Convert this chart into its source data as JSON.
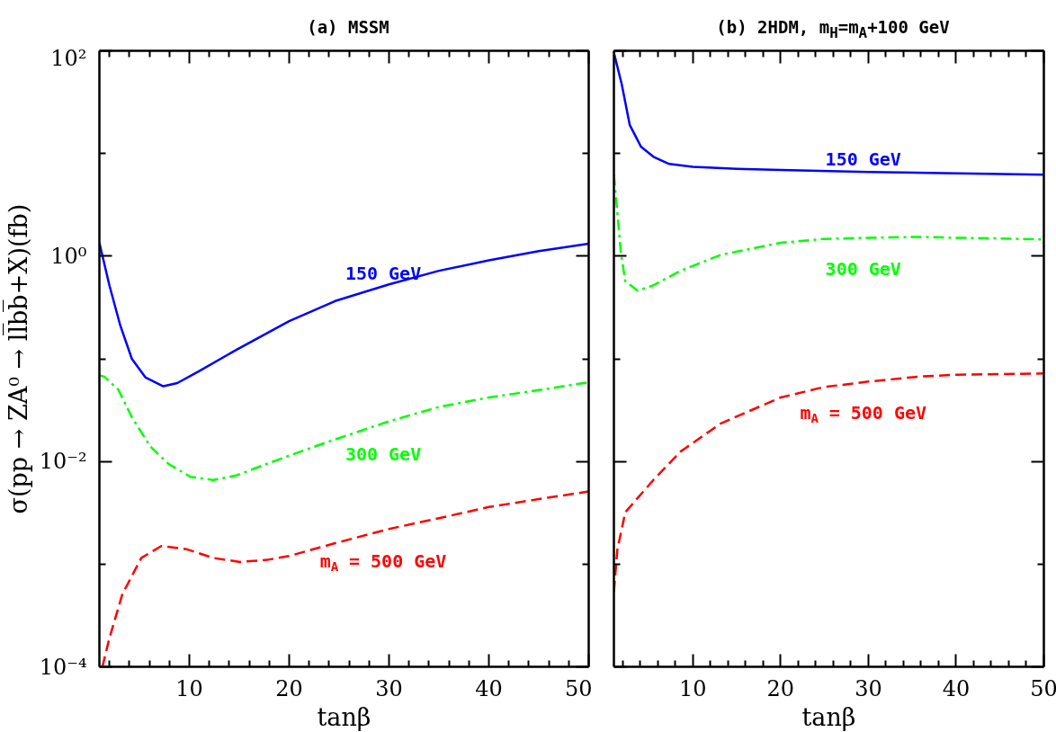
{
  "chart_data": [
    {
      "type": "line",
      "title": "(a) MSSM",
      "xlabel": "tanβ",
      "ylabel": "σ(pp → ZA⁰ → ll̅bb̅+X)(fb)",
      "log": "y",
      "grid": false,
      "xlim": [
        1,
        50
      ],
      "ylim": [
        0.0001,
        100
      ],
      "xticks": [
        {
          "value": 2,
          "label": null
        },
        {
          "value": 4,
          "label": null
        },
        {
          "value": 6,
          "label": null
        },
        {
          "value": 8,
          "label": null
        },
        10,
        {
          "value": 12,
          "label": null
        },
        {
          "value": 14,
          "label": null
        },
        {
          "value": 16,
          "label": null
        },
        {
          "value": 18,
          "label": null
        },
        20,
        {
          "value": 22,
          "label": null
        },
        {
          "value": 24,
          "label": null
        },
        {
          "value": 26,
          "label": null
        },
        {
          "value": 28,
          "label": null
        },
        30,
        {
          "value": 32,
          "label": null
        },
        {
          "value": 34,
          "label": null
        },
        {
          "value": 36,
          "label": null
        },
        {
          "value": 38,
          "label": null
        },
        40,
        {
          "value": 42,
          "label": null
        },
        {
          "value": 44,
          "label": null
        },
        {
          "value": 46,
          "label": null
        },
        {
          "value": 48,
          "label": null
        },
        50
      ],
      "yticks": [
        {
          "value": 0.0001,
          "label": "10⁻⁴"
        },
        {
          "value": 0.001,
          "label": null
        },
        {
          "value": 0.01,
          "label": "10⁻²"
        },
        {
          "value": 0.1,
          "label": null
        },
        {
          "value": 1,
          "label": "10⁰"
        },
        {
          "value": 10,
          "label": null
        },
        {
          "value": 100,
          "label": "10²"
        }
      ],
      "series": [
        {
          "name": "150 GeV",
          "color": "#0000ff",
          "line_style": "solid",
          "x": [
            1,
            2,
            3.1,
            4.25,
            5.6,
            7.4,
            8.8,
            11,
            14.7,
            20,
            24.6,
            30,
            35,
            40,
            45,
            50
          ],
          "values": [
            1.35,
            0.52,
            0.21,
            0.1,
            0.066,
            0.054,
            0.058,
            0.076,
            0.122,
            0.233,
            0.365,
            0.53,
            0.72,
            0.91,
            1.12,
            1.32
          ]
        },
        {
          "name": "300 GeV",
          "color": "#00ff00",
          "line_style": "dashdot",
          "x": [
            1,
            1.5,
            2.9,
            4.25,
            6.1,
            7.9,
            10.1,
            12.4,
            14.7,
            17.8,
            20,
            24.6,
            30,
            35,
            40,
            45,
            50
          ],
          "values": [
            0.069,
            0.067,
            0.05,
            0.027,
            0.014,
            0.0095,
            0.0071,
            0.0066,
            0.0073,
            0.0095,
            0.0114,
            0.0164,
            0.0246,
            0.034,
            0.042,
            0.0496,
            0.059
          ]
        },
        {
          "name": "m$_{A}$ = 500 GeV",
          "color": "#ff0000",
          "line_style": "dashed",
          "x": [
            1.3,
            2,
            3.3,
            5.2,
            7.2,
            9.7,
            12.4,
            15.1,
            17.8,
            20,
            24.6,
            30,
            35,
            40,
            45,
            50
          ],
          "values": [
            0.0001,
            0.00019,
            0.00051,
            0.00115,
            0.0015,
            0.0014,
            0.00115,
            0.00105,
            0.0011,
            0.0012,
            0.0016,
            0.0022,
            0.0028,
            0.0036,
            0.0043,
            0.0051
          ]
        }
      ]
    },
    {
      "type": "line",
      "title": "(b) 2HDM, m$_{H}$=m$_{A}$+100 GeV",
      "xlabel": "tanβ",
      "log": "y",
      "grid": false,
      "tick_labels": "x",
      "xlim": [
        1,
        50
      ],
      "ylim": [
        0.0001,
        100
      ],
      "xticks": [
        {
          "value": 2,
          "label": null
        },
        {
          "value": 4,
          "label": null
        },
        {
          "value": 6,
          "label": null
        },
        {
          "value": 8,
          "label": null
        },
        10,
        {
          "value": 12,
          "label": null
        },
        {
          "value": 14,
          "label": null
        },
        {
          "value": 16,
          "label": null
        },
        {
          "value": 18,
          "label": null
        },
        20,
        {
          "value": 22,
          "label": null
        },
        {
          "value": 24,
          "label": null
        },
        {
          "value": 26,
          "label": null
        },
        {
          "value": 28,
          "label": null
        },
        30,
        {
          "value": 32,
          "label": null
        },
        {
          "value": 34,
          "label": null
        },
        {
          "value": 36,
          "label": null
        },
        {
          "value": 38,
          "label": null
        },
        40,
        {
          "value": 42,
          "label": null
        },
        {
          "value": 44,
          "label": null
        },
        {
          "value": 46,
          "label": null
        },
        {
          "value": 48,
          "label": null
        },
        50
      ],
      "yticks": [
        0.0001,
        {
          "value": 0.001,
          "label": null
        },
        0.01,
        {
          "value": 0.1,
          "label": null
        },
        1,
        {
          "value": 10,
          "label": null
        },
        100
      ],
      "series": [
        {
          "name": "150 GeV",
          "color": "#0000ff",
          "line_style": "solid",
          "x": [
            1,
            1.9,
            2.8,
            4.1,
            5.5,
            7.3,
            10,
            15,
            20,
            30,
            40,
            50
          ],
          "values": [
            96,
            47,
            19,
            11.6,
            9.3,
            7.9,
            7.4,
            7.1,
            6.9,
            6.6,
            6.4,
            6.2
          ]
        },
        {
          "name": "300 GeV",
          "color": "#00ff00",
          "line_style": "dashdot",
          "x": [
            1,
            1.4,
            1.8,
            2.3,
            3.7,
            5.5,
            8.6,
            13.2,
            20,
            24.9,
            30,
            35.7,
            40,
            44.7,
            50
          ],
          "values": [
            6.2,
            2.6,
            1.07,
            0.57,
            0.46,
            0.52,
            0.72,
            1.03,
            1.35,
            1.47,
            1.51,
            1.54,
            1.51,
            1.49,
            1.45
          ]
        },
        {
          "name": "m$_{A}$ = 500 GeV",
          "color": "#ff0000",
          "line_style": "dashed",
          "x": [
            1,
            1.4,
            2.3,
            3.7,
            5.5,
            8.6,
            13.2,
            20,
            24.9,
            30,
            35.7,
            40,
            50
          ],
          "values": [
            0.00054,
            0.0014,
            0.0032,
            0.0044,
            0.0066,
            0.0125,
            0.0235,
            0.042,
            0.053,
            0.06,
            0.067,
            0.07,
            0.072
          ]
        }
      ]
    }
  ]
}
